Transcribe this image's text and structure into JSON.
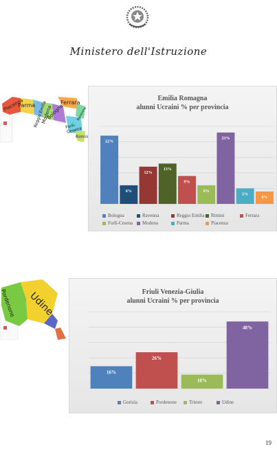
{
  "header": {
    "ministry": "Ministero dell'Istruzione",
    "emblem_icon": "republic-emblem"
  },
  "maps": [
    {
      "name": "emilia-romagna-map",
      "labels": [
        "Piacenza",
        "Parma",
        "Reggio Emilia",
        "Modena",
        "Bologna",
        "Ferrara",
        "Ravenna",
        "Forlì-Cesena",
        "Rimini"
      ]
    },
    {
      "name": "friuli-venezia-giulia-map",
      "labels": [
        "Pordenone",
        "Udine"
      ]
    }
  ],
  "chart_data": [
    {
      "type": "bar",
      "title": "Emilia Romagna",
      "subtitle": "alunni Ucraini % per provincia",
      "categories": [
        "Bologna",
        "Ravenna",
        "Reggio Emilia",
        "Rimini",
        "Ferrara",
        "Forlì-Cesena",
        "Modena",
        "Parma",
        "Piacenza"
      ],
      "values": [
        22,
        6,
        12,
        13,
        9,
        6,
        23,
        5,
        4
      ],
      "labels": [
        "22%",
        "6%",
        "12%",
        "13%",
        "9%",
        "6%",
        "23%",
        "5%",
        "4%"
      ],
      "colors": [
        "#4f81bd",
        "#1f4e79",
        "#953735",
        "#4f6228",
        "#c0504d",
        "#9bbb59",
        "#8064a2",
        "#4bacc6",
        "#f79646"
      ],
      "ylim": [
        0,
        25
      ],
      "grid": true,
      "legend_position": "bottom"
    },
    {
      "type": "bar",
      "title": "Friuli Venezia-Giulia",
      "subtitle": "alunni Ucraini % per provincia",
      "categories": [
        "Gorizia",
        "Pordenone",
        "Trieste",
        "Udine"
      ],
      "values": [
        16,
        26,
        10,
        48
      ],
      "labels": [
        "16%",
        "26%",
        "10%",
        "48%"
      ],
      "colors": [
        "#4f81bd",
        "#c0504d",
        "#9bbb59",
        "#8064a2"
      ],
      "ylim": [
        0,
        55
      ],
      "grid": true,
      "legend_position": "bottom"
    }
  ],
  "footer": {
    "page_number": "19"
  }
}
